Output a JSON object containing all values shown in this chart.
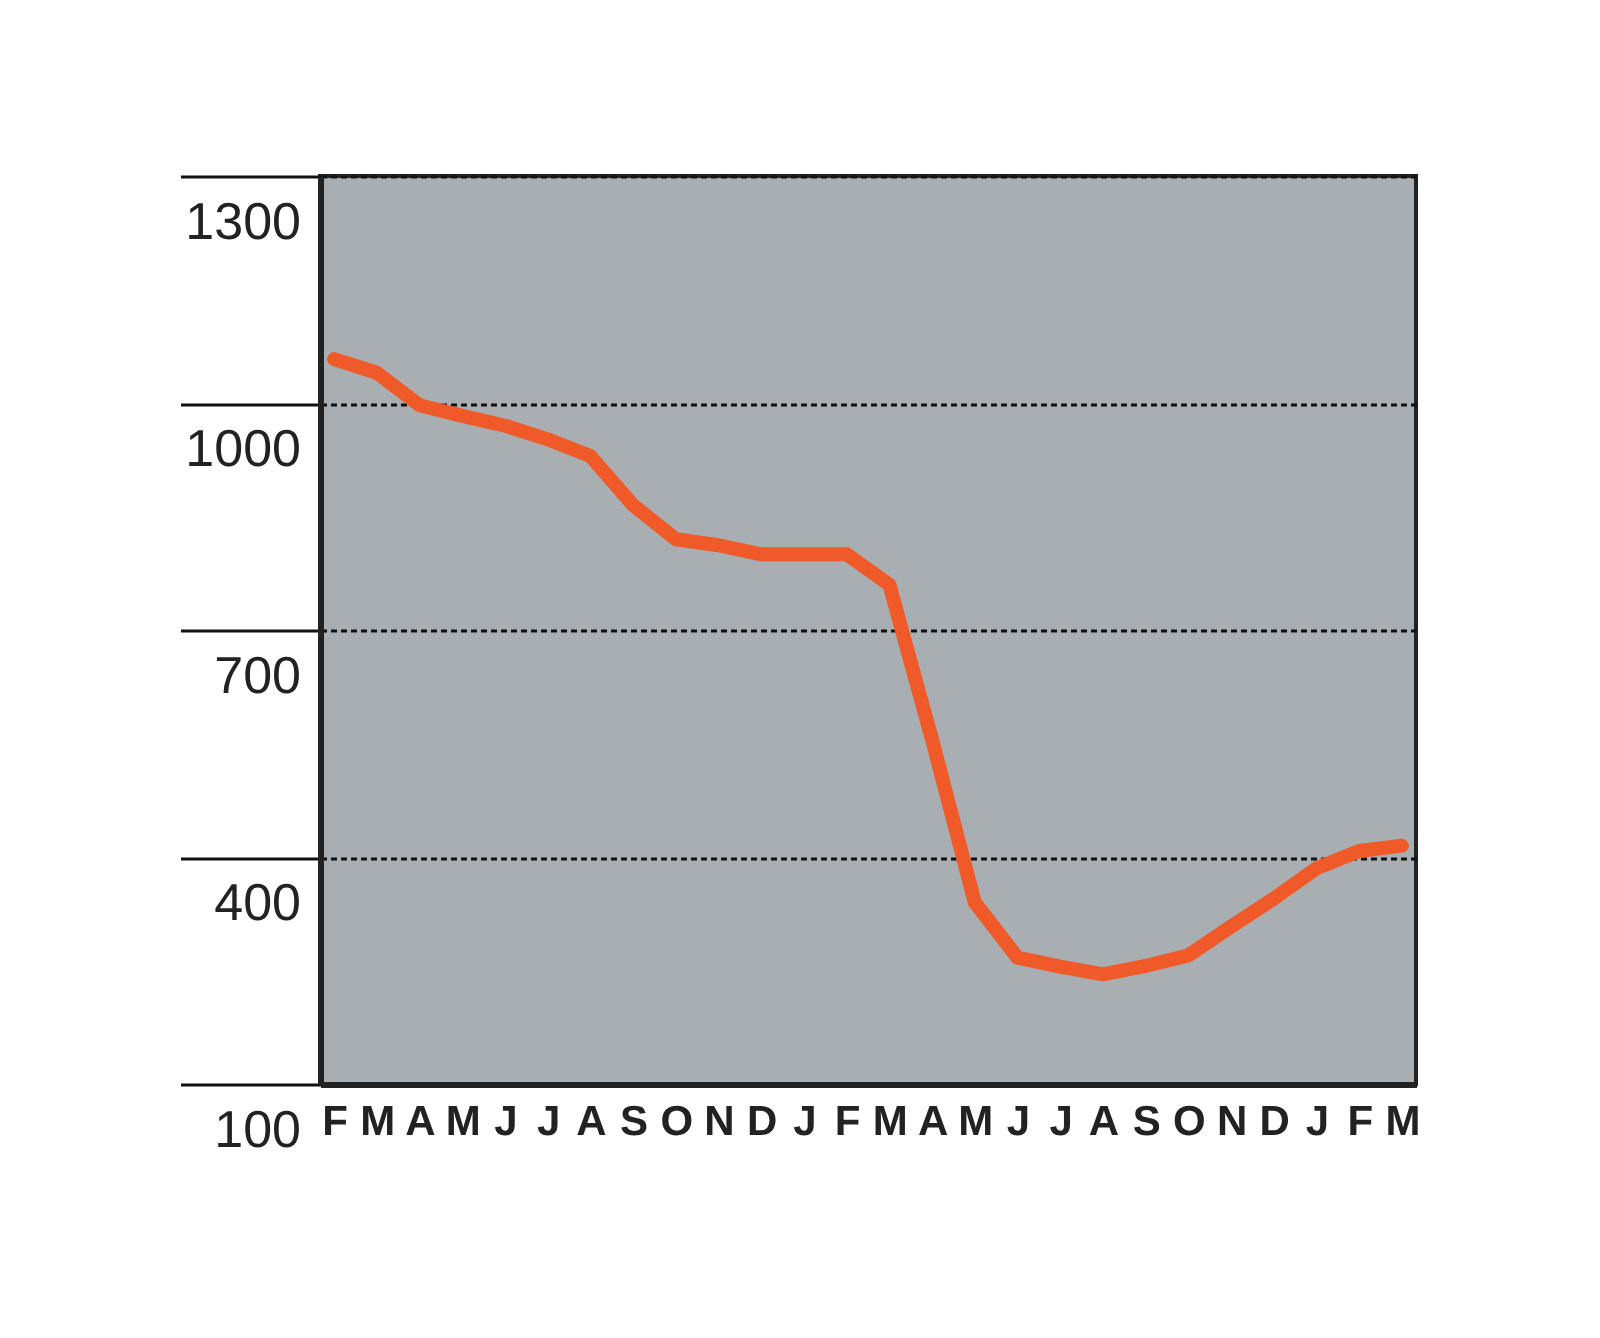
{
  "chart_data": {
    "type": "line",
    "ylim": [
      100,
      1300
    ],
    "yticks": [
      100,
      400,
      700,
      {
        "value": 1000,
        "label": "1000"
      },
      {
        "value": 1300,
        "label": "1300"
      }
    ],
    "categories": [
      "F",
      "M",
      "A",
      "M",
      "J",
      "J",
      "A",
      "S",
      "O",
      "N",
      "D",
      "J",
      "F",
      "M",
      "A",
      "M",
      "J",
      "J",
      "A",
      "S",
      "O",
      "N",
      "D",
      "J",
      "F",
      "M"
    ],
    "grid": "y",
    "marker": "none",
    "line_style": "solid",
    "series": [
      {
        "color": "#f05a28",
        "values": [
          1058,
          1040,
          997,
          983,
          970,
          952,
          930,
          865,
          820,
          812,
          800,
          800,
          800,
          760,
          555,
          340,
          267,
          255,
          245,
          256,
          270,
          308,
          345,
          385,
          408,
          415
        ]
      }
    ]
  }
}
